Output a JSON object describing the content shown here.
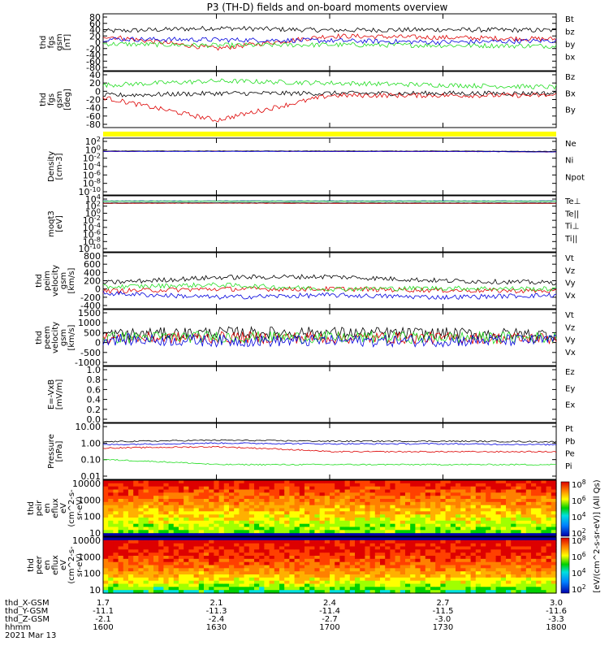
{
  "title": "P3 (TH-D) fields and on-board moments overview",
  "colors": {
    "black": "#000000",
    "red": "#dd0000",
    "green": "#22dd22",
    "blue": "#0000dd",
    "yellow": "#ffff00"
  },
  "colorbar": {
    "label": "[eV/(cm^2-s-sr-eV)] (All Qs)",
    "ticks": [
      "10^8",
      "10^6",
      "10^4",
      "10^2",
      "10^8",
      "10^6",
      "10^4",
      "10^2"
    ]
  },
  "bottom_axis": {
    "rows": [
      {
        "label": "thd_X-GSM",
        "values": [
          "1.7",
          "2.1",
          "2.4",
          "2.7",
          "3.0"
        ]
      },
      {
        "label": "thd_Y-GSM",
        "values": [
          "-11.1",
          "-11.3",
          "-11.4",
          "-11.5",
          "-11.6"
        ]
      },
      {
        "label": "thd_Z-GSM",
        "values": [
          "-2.1",
          "-2.4",
          "-2.7",
          "-3.0",
          "-3.3"
        ]
      },
      {
        "label": "hhmm",
        "values": [
          "1600",
          "1630",
          "1700",
          "1730",
          "1800"
        ]
      }
    ],
    "date": "2021 Mar 13"
  },
  "chart_data": [
    {
      "type": "line",
      "ylabel_lines": [
        "thd",
        "fgs",
        "gsm",
        "[nT]"
      ],
      "yticks": [
        "80",
        "60",
        "40",
        "20",
        "0",
        "-20",
        "-40",
        "-60",
        "-80"
      ],
      "ylim": [
        -80,
        80
      ],
      "x": [
        "1600",
        "1630",
        "1700",
        "1730",
        "1800"
      ],
      "series": [
        {
          "name": "Bt",
          "color": "black",
          "values": [
            35,
            45,
            38,
            40,
            38
          ]
        },
        {
          "name": "bz",
          "color": "red",
          "values": [
            20,
            -20,
            20,
            15,
            10
          ]
        },
        {
          "name": "by",
          "color": "green",
          "values": [
            -5,
            -10,
            -8,
            -10,
            -12
          ]
        },
        {
          "name": "bx",
          "color": "blue",
          "values": [
            10,
            8,
            5,
            0,
            5
          ]
        }
      ]
    },
    {
      "type": "line",
      "ylabel_lines": [
        "thd",
        "fgs",
        "gsm",
        "[deg]"
      ],
      "yticks": [
        "40",
        "20",
        "0",
        "-20",
        "-40",
        "-60",
        "-80"
      ],
      "ylim": [
        -80,
        40
      ],
      "x": [
        "1600",
        "1630",
        "1700",
        "1730",
        "1800"
      ],
      "series": [
        {
          "name": "Bz",
          "color": "green",
          "values": [
            15,
            25,
            20,
            15,
            10
          ]
        },
        {
          "name": "Bx",
          "color": "black",
          "values": [
            -10,
            -5,
            -5,
            -5,
            -5
          ]
        },
        {
          "name": "By",
          "color": "red",
          "values": [
            -15,
            -70,
            -10,
            -10,
            -10
          ]
        }
      ]
    },
    {
      "type": "line",
      "ylabel_lines": [
        "Density",
        "[cm-3]"
      ],
      "yticks": [
        "10^2",
        "10^0",
        "10^-2",
        "10^-4",
        "10^-6",
        "10^-8",
        "10^-10"
      ],
      "scale": "log",
      "series": [
        {
          "name": "Ne",
          "color": "red",
          "values": [
            0.4,
            0.5,
            0.4,
            0.4,
            0.3
          ]
        },
        {
          "name": "Ni",
          "color": "black",
          "values": [
            0.5,
            0.5,
            0.5,
            0.5,
            0.4
          ]
        },
        {
          "name": "Npot",
          "color": "blue",
          "values": [
            0.4,
            0.4,
            0.4,
            0.4,
            0.3
          ]
        }
      ]
    },
    {
      "type": "line",
      "ylabel_lines": [
        "moqt3",
        "[eV]"
      ],
      "yticks": [
        "10^4",
        "10^2",
        "10^0",
        "10^-2",
        "10^-4",
        "10^-6",
        "10^-8",
        "10^-10"
      ],
      "scale": "log",
      "series": [
        {
          "name": "Te⊥",
          "color": "red",
          "values": [
            600,
            700,
            600,
            600,
            600
          ]
        },
        {
          "name": "Te||",
          "color": "black",
          "values": [
            800,
            900,
            800,
            800,
            800
          ]
        },
        {
          "name": "Ti⊥",
          "color": "blue",
          "values": [
            3000,
            3000,
            3000,
            3000,
            3000
          ]
        },
        {
          "name": "Ti||",
          "color": "green",
          "values": [
            2500,
            2500,
            2500,
            2500,
            2500
          ]
        }
      ]
    },
    {
      "type": "line",
      "ylabel_lines": [
        "thd",
        "peim",
        "velocity",
        "gsm",
        "[km/s]"
      ],
      "yticks": [
        "800",
        "600",
        "400",
        "200",
        "0",
        "-200",
        "-400"
      ],
      "ylim": [
        -400,
        800
      ],
      "x": [
        "1600",
        "1630",
        "1700",
        "1730",
        "1800"
      ],
      "series": [
        {
          "name": "Vt",
          "color": "black",
          "values": [
            150,
            280,
            300,
            200,
            150
          ]
        },
        {
          "name": "Vz",
          "color": "red",
          "values": [
            -50,
            0,
            0,
            -30,
            -50
          ]
        },
        {
          "name": "Vy",
          "color": "green",
          "values": [
            50,
            100,
            0,
            20,
            0
          ]
        },
        {
          "name": "Vx",
          "color": "blue",
          "values": [
            -100,
            -200,
            -150,
            -200,
            -150
          ]
        }
      ]
    },
    {
      "type": "line",
      "ylabel_lines": [
        "thd",
        "peem",
        "velocity",
        "gsm",
        "[km/s]"
      ],
      "yticks": [
        "1500",
        "1000",
        "500",
        "0",
        "-500",
        "-1000"
      ],
      "ylim": [
        -1500,
        1500
      ],
      "x": [
        "1600",
        "1630",
        "1700",
        "1730",
        "1800"
      ],
      "series": [
        {
          "name": "Vt",
          "color": "black",
          "values": [
            200,
            300,
            300,
            250,
            200
          ]
        },
        {
          "name": "Vz",
          "color": "red",
          "values": [
            -50,
            0,
            0,
            -30,
            -50
          ]
        },
        {
          "name": "Vy",
          "color": "green",
          "values": [
            0,
            50,
            0,
            0,
            0
          ]
        },
        {
          "name": "Vx",
          "color": "blue",
          "values": [
            -100,
            -200,
            -200,
            -200,
            -150
          ]
        }
      ]
    },
    {
      "type": "line",
      "ylabel_lines": [
        "E=-VxB",
        "[mV/m]"
      ],
      "yticks": [
        "1.0",
        "0.8",
        "0.6",
        "0.4",
        "0.2",
        "0.0"
      ],
      "ylim": [
        0,
        1
      ],
      "series": [
        {
          "name": "Ez",
          "color": "red",
          "values": []
        },
        {
          "name": "Ey",
          "color": "green",
          "values": []
        },
        {
          "name": "Ex",
          "color": "blue",
          "values": []
        }
      ]
    },
    {
      "type": "line",
      "ylabel_lines": [
        "Pressure",
        "[nPa]"
      ],
      "yticks": [
        "10.00",
        "1.00",
        "0.10",
        "0.01"
      ],
      "scale": "log",
      "ylim": [
        0.01,
        10
      ],
      "series": [
        {
          "name": "Pt",
          "color": "black",
          "values": [
            1.2,
            1.5,
            1.3,
            1.3,
            1.2
          ]
        },
        {
          "name": "Pb",
          "color": "red",
          "values": [
            0.5,
            0.6,
            0.3,
            0.3,
            0.3
          ]
        },
        {
          "name": "Pe",
          "color": "green",
          "values": [
            0.1,
            0.05,
            0.05,
            0.05,
            0.05
          ]
        },
        {
          "name": "Pi",
          "color": "blue",
          "values": [
            0.8,
            1.0,
            0.9,
            0.9,
            0.8
          ]
        }
      ]
    },
    {
      "type": "heatmap",
      "ylabel_lines": [
        "thd",
        "peir",
        "en",
        "eflux",
        "eV",
        "(cm^2-s-",
        "sr-eV)"
      ],
      "yticks": [
        "10000",
        "1000",
        "100",
        "10"
      ],
      "scale": "log"
    },
    {
      "type": "heatmap",
      "ylabel_lines": [
        "thd",
        "peer",
        "en",
        "eflux",
        "eV",
        "(cm^2-s-",
        "sr-eV)"
      ],
      "yticks": [
        "10000",
        "1000",
        "100",
        "10"
      ],
      "scale": "log"
    }
  ]
}
